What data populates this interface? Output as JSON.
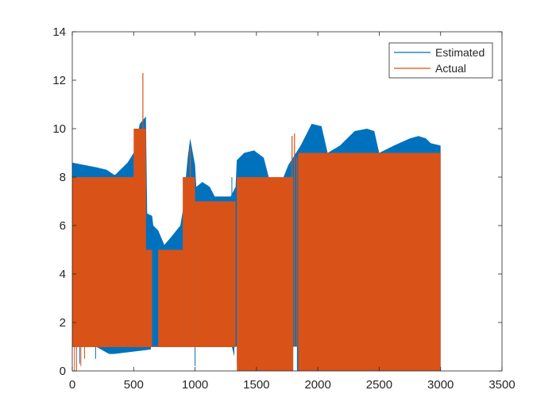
{
  "chart_data": {
    "type": "area",
    "title": "",
    "xlabel": "",
    "ylabel": "",
    "xlim": [
      0,
      3500
    ],
    "ylim": [
      0,
      14
    ],
    "x_ticks": [
      0,
      500,
      1000,
      1500,
      2000,
      2500,
      3000,
      3500
    ],
    "y_ticks": [
      0,
      2,
      4,
      6,
      8,
      10,
      12,
      14
    ],
    "x_tick_labels": [
      "0",
      "500",
      "1000",
      "1500",
      "2000",
      "2500",
      "3000",
      "3500"
    ],
    "y_tick_labels": [
      "0",
      "2",
      "4",
      "6",
      "8",
      "10",
      "12",
      "14"
    ],
    "grid": false,
    "legend_position": "top-right",
    "series": [
      {
        "name": "Estimated",
        "color": "#0072BD",
        "rendering": "dense oscillation band (lower envelope to upper envelope)",
        "upper_envelope": [
          [
            0,
            8.6
          ],
          [
            100,
            8.5
          ],
          [
            200,
            8.4
          ],
          [
            280,
            8.3
          ],
          [
            340,
            8.1
          ],
          [
            350,
            8.1
          ],
          [
            450,
            8.6
          ],
          [
            500,
            9.0
          ],
          [
            550,
            10.2
          ],
          [
            600,
            10.5
          ],
          [
            610,
            6.5
          ],
          [
            650,
            6.4
          ],
          [
            660,
            6.0
          ],
          [
            700,
            5.8
          ],
          [
            750,
            5.2
          ],
          [
            800,
            5.5
          ],
          [
            880,
            6.0
          ],
          [
            900,
            6.6
          ],
          [
            940,
            8.8
          ],
          [
            960,
            9.6
          ],
          [
            1000,
            8.5
          ],
          [
            1010,
            7.6
          ],
          [
            1060,
            7.8
          ],
          [
            1120,
            7.6
          ],
          [
            1160,
            7.2
          ],
          [
            1290,
            7.2
          ],
          [
            1330,
            7.6
          ],
          [
            1340,
            8.7
          ],
          [
            1400,
            9.0
          ],
          [
            1480,
            9.1
          ],
          [
            1560,
            8.8
          ],
          [
            1600,
            8.0
          ],
          [
            1720,
            8.0
          ],
          [
            1760,
            8.5
          ],
          [
            1860,
            9.3
          ],
          [
            1950,
            10.2
          ],
          [
            2030,
            10.1
          ],
          [
            2080,
            9.0
          ],
          [
            2180,
            9.3
          ],
          [
            2300,
            9.9
          ],
          [
            2400,
            10.0
          ],
          [
            2460,
            9.9
          ],
          [
            2500,
            9.0
          ],
          [
            2620,
            9.3
          ],
          [
            2750,
            9.6
          ],
          [
            2820,
            9.7
          ],
          [
            2880,
            9.6
          ],
          [
            2920,
            9.4
          ],
          [
            3000,
            9.3
          ]
        ],
        "lower_envelope": [
          [
            0,
            1.6
          ],
          [
            50,
            1.4
          ],
          [
            300,
            0.7
          ],
          [
            340,
            0.7
          ],
          [
            660,
            0.9
          ],
          [
            700,
            1.0
          ],
          [
            1300,
            1.0
          ],
          [
            1350,
            0.0
          ],
          [
            3000,
            0.0
          ]
        ]
      },
      {
        "name": "Actual",
        "color": "#D95319",
        "rendering": "dense square-wave band switching between low and high levels",
        "segments": [
          {
            "x_start": 0,
            "x_end": 600,
            "low": 1.0,
            "high": 8.0
          },
          {
            "x_start": 500,
            "x_end": 600,
            "low": 1.0,
            "high": 10.0
          },
          {
            "x_start": 600,
            "x_end": 650,
            "low": 1.0,
            "high": 5.0
          },
          {
            "x_start": 700,
            "x_end": 900,
            "low": 1.0,
            "high": 5.0
          },
          {
            "x_start": 900,
            "x_end": 1000,
            "low": 1.0,
            "high": 8.0
          },
          {
            "x_start": 1000,
            "x_end": 1330,
            "low": 1.0,
            "high": 7.0
          },
          {
            "x_start": 1340,
            "x_end": 1800,
            "low": 0.0,
            "high": 8.0
          },
          {
            "x_start": 1840,
            "x_end": 3000,
            "low": 0.0,
            "high": 9.0
          }
        ],
        "spikes": [
          [
            575,
            12.3
          ],
          [
            1790,
            9.7
          ],
          [
            1810,
            9.8
          ],
          [
            1830,
            8.8
          ],
          [
            960,
            9.2
          ]
        ]
      }
    ]
  }
}
